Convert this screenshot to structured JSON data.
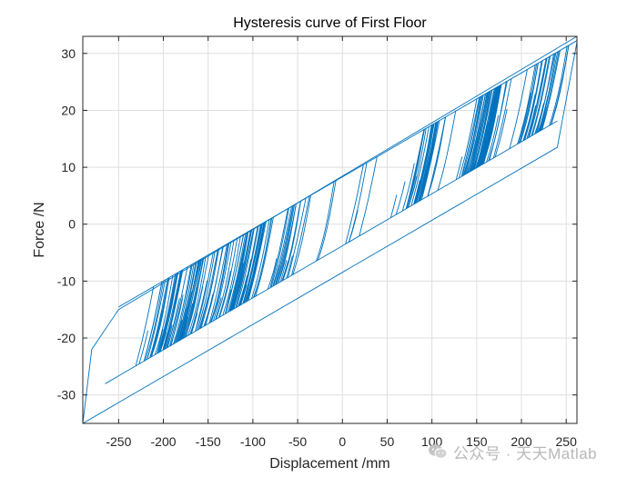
{
  "chart_data": {
    "type": "line",
    "title": "Hysteresis curve of First Floor",
    "xlabel": "Displacement /mm",
    "ylabel": "Force /N",
    "xlim": [
      -290,
      262
    ],
    "ylim": [
      -35,
      33
    ],
    "xticks": [
      -250,
      -200,
      -150,
      -100,
      -50,
      0,
      50,
      100,
      150,
      200,
      250
    ],
    "yticks": [
      -30,
      -20,
      -10,
      0,
      10,
      20,
      30
    ],
    "grid": true,
    "line_color": "#0072BD",
    "envelope": {
      "upper_outer": [
        [
          -290,
          -35
        ],
        [
          -280,
          -22
        ],
        [
          -250,
          -15
        ],
        [
          262,
          33
        ]
      ],
      "lower_outer": [
        [
          -290,
          -35
        ],
        [
          240,
          13.5
        ],
        [
          262,
          32
        ]
      ],
      "upper_band": {
        "slope": 0.0914,
        "intercept": 8.3
      },
      "lower_band": {
        "slope": 0.0914,
        "intercept": -3.8
      }
    },
    "stiff_slope": 0.7
  },
  "watermark": {
    "text": "公众号 · 天天Matlab",
    "icon": "wechat-icon",
    "color": "#b8b8b8"
  }
}
